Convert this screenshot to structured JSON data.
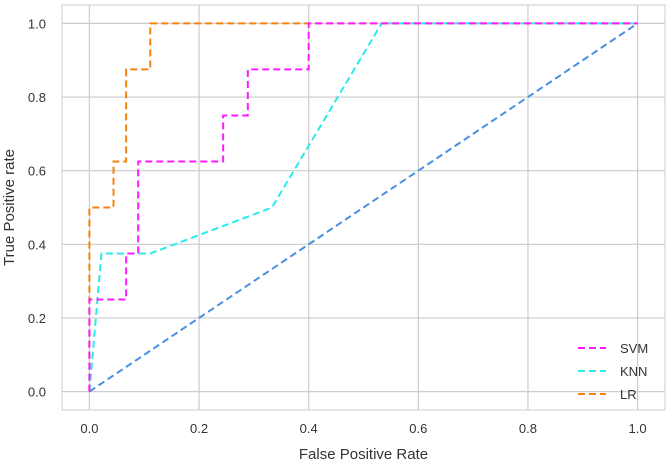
{
  "chart_data": {
    "type": "line",
    "title": "",
    "xlabel": "False Positive Rate",
    "ylabel": "True Positive rate",
    "xlim": [
      -0.05,
      1.05
    ],
    "ylim": [
      -0.05,
      1.05
    ],
    "xticks": [
      0.0,
      0.2,
      0.4,
      0.6,
      0.8,
      1.0
    ],
    "yticks": [
      0.0,
      0.2,
      0.4,
      0.6,
      0.8,
      1.0
    ],
    "xtick_labels": [
      "0.0",
      "0.2",
      "0.4",
      "0.6",
      "0.8",
      "1.0"
    ],
    "ytick_labels": [
      "0.0",
      "0.2",
      "0.4",
      "0.6",
      "0.8",
      "1.0"
    ],
    "grid": true,
    "legend_position": "bottom-right",
    "series": [
      {
        "name": "SVM",
        "color": "#ff1aff",
        "dashed": true,
        "x": [
          0,
          0,
          0.011,
          0.011,
          0.067,
          0.067,
          0.089,
          0.089,
          0.244,
          0.244,
          0.289,
          0.289,
          0.4,
          0.4,
          1.0
        ],
        "y": [
          0,
          0.25,
          0.25,
          0.25,
          0.25,
          0.375,
          0.375,
          0.625,
          0.625,
          0.75,
          0.75,
          0.875,
          0.875,
          1.0,
          1.0
        ]
      },
      {
        "name": "KNN",
        "color": "#2aebeb",
        "dashed": true,
        "x": [
          0,
          0.022,
          0.111,
          0.333,
          0.533,
          1.0
        ],
        "y": [
          0,
          0.375,
          0.375,
          0.5,
          1.0,
          1.0
        ]
      },
      {
        "name": "LR",
        "color": "#f5820a",
        "dashed": true,
        "x": [
          0,
          0,
          0.044,
          0.044,
          0.067,
          0.067,
          0.111,
          0.111,
          1.0
        ],
        "y": [
          0,
          0.5,
          0.5,
          0.625,
          0.625,
          0.875,
          0.875,
          1.0,
          1.0
        ]
      }
    ],
    "reference_line": {
      "color": "#4a8fe0",
      "dashed": true,
      "x": [
        0,
        1
      ],
      "y": [
        0,
        1
      ]
    }
  }
}
